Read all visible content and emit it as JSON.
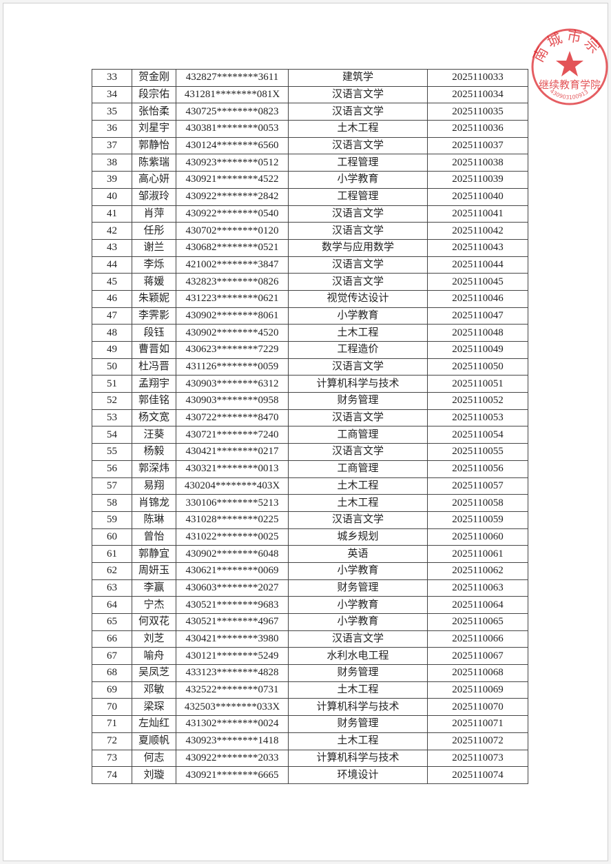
{
  "table": {
    "rows": [
      [
        "33",
        "贺金刚",
        "432827********3611",
        "建筑学",
        "2025110033"
      ],
      [
        "34",
        "段宗佑",
        "431281********081X",
        "汉语言文学",
        "2025110034"
      ],
      [
        "35",
        "张怡柔",
        "430725********0823",
        "汉语言文学",
        "2025110035"
      ],
      [
        "36",
        "刘星宇",
        "430381********0053",
        "土木工程",
        "2025110036"
      ],
      [
        "37",
        "郭静怡",
        "430124********6560",
        "汉语言文学",
        "2025110037"
      ],
      [
        "38",
        "陈紫瑞",
        "430923********0512",
        "工程管理",
        "2025110038"
      ],
      [
        "39",
        "高心妍",
        "430921********4522",
        "小学教育",
        "2025110039"
      ],
      [
        "40",
        "邹淑玲",
        "430922********2842",
        "工程管理",
        "2025110040"
      ],
      [
        "41",
        "肖萍",
        "430922********0540",
        "汉语言文学",
        "2025110041"
      ],
      [
        "42",
        "任彤",
        "430702********0120",
        "汉语言文学",
        "2025110042"
      ],
      [
        "43",
        "谢兰",
        "430682********0521",
        "数学与应用数学",
        "2025110043"
      ],
      [
        "44",
        "李烁",
        "421002********3847",
        "汉语言文学",
        "2025110044"
      ],
      [
        "45",
        "蒋媛",
        "432823********0826",
        "汉语言文学",
        "2025110045"
      ],
      [
        "46",
        "朱颖妮",
        "431223********0621",
        "视觉传达设计",
        "2025110046"
      ],
      [
        "47",
        "李霁影",
        "430902********8061",
        "小学教育",
        "2025110047"
      ],
      [
        "48",
        "段钰",
        "430902********4520",
        "土木工程",
        "2025110048"
      ],
      [
        "49",
        "曹晋如",
        "430623********7229",
        "工程造价",
        "2025110049"
      ],
      [
        "50",
        "杜冯晋",
        "431126********0059",
        "汉语言文学",
        "2025110050"
      ],
      [
        "51",
        "孟翔宇",
        "430903********6312",
        "计算机科学与技术",
        "2025110051"
      ],
      [
        "52",
        "郭佳铭",
        "430903********0958",
        "财务管理",
        "2025110052"
      ],
      [
        "53",
        "杨文宽",
        "430722********8470",
        "汉语言文学",
        "2025110053"
      ],
      [
        "54",
        "汪葵",
        "430721********7240",
        "工商管理",
        "2025110054"
      ],
      [
        "55",
        "杨毅",
        "430421********0217",
        "汉语言文学",
        "2025110055"
      ],
      [
        "56",
        "郭深炜",
        "430321********0013",
        "工商管理",
        "2025110056"
      ],
      [
        "57",
        "易翔",
        "430204********403X",
        "土木工程",
        "2025110057"
      ],
      [
        "58",
        "肖锦龙",
        "330106********5213",
        "土木工程",
        "2025110058"
      ],
      [
        "59",
        "陈琳",
        "431028********0225",
        "汉语言文学",
        "2025110059"
      ],
      [
        "60",
        "曾怡",
        "431022********0025",
        "城乡规划",
        "2025110060"
      ],
      [
        "61",
        "郭静宜",
        "430902********6048",
        "英语",
        "2025110061"
      ],
      [
        "62",
        "周妍玉",
        "430621********0069",
        "小学教育",
        "2025110062"
      ],
      [
        "63",
        "李赢",
        "430603********2027",
        "财务管理",
        "2025110063"
      ],
      [
        "64",
        "宁杰",
        "430521********9683",
        "小学教育",
        "2025110064"
      ],
      [
        "65",
        "何双花",
        "430521********4967",
        "小学教育",
        "2025110065"
      ],
      [
        "66",
        "刘芝",
        "430421********3980",
        "汉语言文学",
        "2025110066"
      ],
      [
        "67",
        "喻舟",
        "430121********5249",
        "水利水电工程",
        "2025110067"
      ],
      [
        "68",
        "吴凤芝",
        "433123********4828",
        "财务管理",
        "2025110068"
      ],
      [
        "69",
        "邓敏",
        "432522********0731",
        "土木工程",
        "2025110069"
      ],
      [
        "70",
        "梁琛",
        "432503********033X",
        "计算机科学与技术",
        "2025110070"
      ],
      [
        "71",
        "左灿红",
        "431302********0024",
        "财务管理",
        "2025110071"
      ],
      [
        "72",
        "夏顺帆",
        "430923********1418",
        "土木工程",
        "2025110072"
      ],
      [
        "73",
        "何志",
        "430922********2033",
        "计算机科学与技术",
        "2025110073"
      ],
      [
        "74",
        "刘璇",
        "430921********6665",
        "环境设计",
        "2025110074"
      ]
    ]
  },
  "stamp": {
    "arc_text": "南城市宗",
    "center_text": "继续教育学院",
    "number": "430903100913",
    "color": "#dc282d"
  }
}
